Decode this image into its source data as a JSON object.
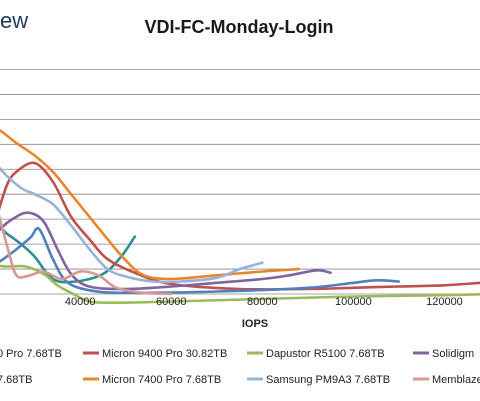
{
  "brand_fragment": "ew",
  "chart_data": {
    "type": "line",
    "title": "VDI-FC-Monday-Login",
    "xlabel": "IOPS",
    "ylabel": "",
    "xlim": [
      18000,
      130000
    ],
    "ylim": [
      0.0,
      1.9
    ],
    "x_ticks": [
      40000,
      60000,
      80000,
      100000,
      120000
    ],
    "x_tick_labels": [
      "40000",
      "60000",
      "80000",
      "100000",
      "120000"
    ],
    "y_gridlines": [
      0.0,
      0.2,
      0.4,
      0.6,
      0.8,
      1.0,
      1.2,
      1.4,
      1.6,
      1.8
    ],
    "grid": true,
    "legend_position": "bottom",
    "legend_labels": [
      [
        "0 Pro 7.68TB",
        "Micron 9400 Pro 30.82TB",
        "Dapustor R5100 7.68TB",
        "Solidigm"
      ],
      [
        "7.68TB",
        "Micron 7400 Pro 7.68TB",
        "Samsung PM9A3 7.68TB",
        "Memblaze"
      ]
    ],
    "series": [
      {
        "name": "0 Pro 7.68TB",
        "color": "#2a8f95",
        "points": [
          [
            18000,
            0.35
          ],
          [
            21000,
            0.55
          ],
          [
            24000,
            0.48
          ],
          [
            27000,
            0.4
          ],
          [
            30000,
            0.3
          ],
          [
            34000,
            0.12
          ],
          [
            39000,
            0.1
          ],
          [
            45000,
            0.16
          ],
          [
            49000,
            0.3
          ],
          [
            52000,
            0.46
          ]
        ]
      },
      {
        "name": "Micron 9400 Pro 30.82TB",
        "color": "#c0504d",
        "points": [
          [
            22000,
            0.66
          ],
          [
            24000,
            0.88
          ],
          [
            26000,
            0.98
          ],
          [
            30000,
            1.05
          ],
          [
            34000,
            0.9
          ],
          [
            38000,
            0.62
          ],
          [
            42000,
            0.44
          ],
          [
            46000,
            0.28
          ],
          [
            52000,
            0.17
          ],
          [
            60000,
            0.08
          ],
          [
            75000,
            0.04
          ],
          [
            90000,
            0.04
          ],
          [
            100000,
            0.05
          ],
          [
            110000,
            0.06
          ],
          [
            120000,
            0.07
          ],
          [
            128000,
            0.09
          ]
        ]
      },
      {
        "name": "Dapustor R5100 7.68TB",
        "color": "#9bbb59",
        "points": [
          [
            18000,
            0.14
          ],
          [
            21000,
            0.22
          ],
          [
            24000,
            0.22
          ],
          [
            28000,
            0.22
          ],
          [
            32000,
            0.16
          ],
          [
            35000,
            0.07
          ],
          [
            38000,
            0.01
          ],
          [
            42000,
            -0.06
          ],
          [
            48000,
            -0.07
          ],
          [
            60000,
            -0.06
          ],
          [
            80000,
            -0.04
          ],
          [
            100000,
            -0.02
          ],
          [
            120000,
            -0.01
          ],
          [
            130000,
            0.0
          ]
        ]
      },
      {
        "name": "Solidigm",
        "color": "#8064a2",
        "points": [
          [
            18000,
            0.25
          ],
          [
            22000,
            0.5
          ],
          [
            26000,
            0.62
          ],
          [
            29000,
            0.65
          ],
          [
            32000,
            0.58
          ],
          [
            35000,
            0.36
          ],
          [
            38000,
            0.16
          ],
          [
            42000,
            0.06
          ],
          [
            50000,
            0.04
          ],
          [
            60000,
            0.06
          ],
          [
            70000,
            0.09
          ],
          [
            80000,
            0.12
          ],
          [
            86000,
            0.15
          ],
          [
            92000,
            0.19
          ],
          [
            95000,
            0.17
          ]
        ]
      },
      {
        "name": "7.68TB",
        "color": "#4f81bd",
        "points": [
          [
            18000,
            0.18
          ],
          [
            21000,
            0.23
          ],
          [
            25000,
            0.33
          ],
          [
            29000,
            0.45
          ],
          [
            31000,
            0.52
          ],
          [
            34000,
            0.28
          ],
          [
            37000,
            0.1
          ],
          [
            42000,
            0.03
          ],
          [
            50000,
            0.01
          ],
          [
            70000,
            0.02
          ],
          [
            90000,
            0.05
          ],
          [
            100000,
            0.09
          ],
          [
            105000,
            0.11
          ],
          [
            110000,
            0.1
          ]
        ]
      },
      {
        "name": "Micron 7400 Pro 7.68TB",
        "color": "#e8862c",
        "points": [
          [
            18000,
            1.38
          ],
          [
            22000,
            1.32
          ],
          [
            26000,
            1.21
          ],
          [
            30000,
            1.11
          ],
          [
            34000,
            0.98
          ],
          [
            38000,
            0.8
          ],
          [
            42000,
            0.62
          ],
          [
            46000,
            0.44
          ],
          [
            50000,
            0.27
          ],
          [
            54000,
            0.15
          ],
          [
            60000,
            0.12
          ],
          [
            70000,
            0.15
          ],
          [
            80000,
            0.18
          ],
          [
            88000,
            0.2
          ]
        ]
      },
      {
        "name": "Samsung PM9A3 7.68TB",
        "color": "#95b3d7",
        "points": [
          [
            18000,
            1.22
          ],
          [
            20000,
            1.12
          ],
          [
            23000,
            0.98
          ],
          [
            27000,
            0.85
          ],
          [
            30000,
            0.8
          ],
          [
            34000,
            0.72
          ],
          [
            38000,
            0.55
          ],
          [
            42000,
            0.36
          ],
          [
            46000,
            0.2
          ],
          [
            50000,
            0.14
          ],
          [
            56000,
            0.1
          ],
          [
            62000,
            0.1
          ],
          [
            70000,
            0.13
          ],
          [
            75000,
            0.2
          ],
          [
            80000,
            0.25
          ]
        ]
      },
      {
        "name": "Memblaze",
        "color": "#d99795",
        "points": [
          [
            18000,
            1.18
          ],
          [
            20000,
            0.92
          ],
          [
            22000,
            0.65
          ],
          [
            24000,
            0.38
          ],
          [
            26000,
            0.15
          ],
          [
            29000,
            0.15
          ],
          [
            32000,
            0.18
          ],
          [
            36000,
            0.12
          ],
          [
            40000,
            0.18
          ],
          [
            44000,
            0.15
          ],
          [
            48000,
            0.05
          ],
          [
            54000,
            0.01
          ],
          [
            60000,
            0.0
          ]
        ]
      }
    ]
  }
}
